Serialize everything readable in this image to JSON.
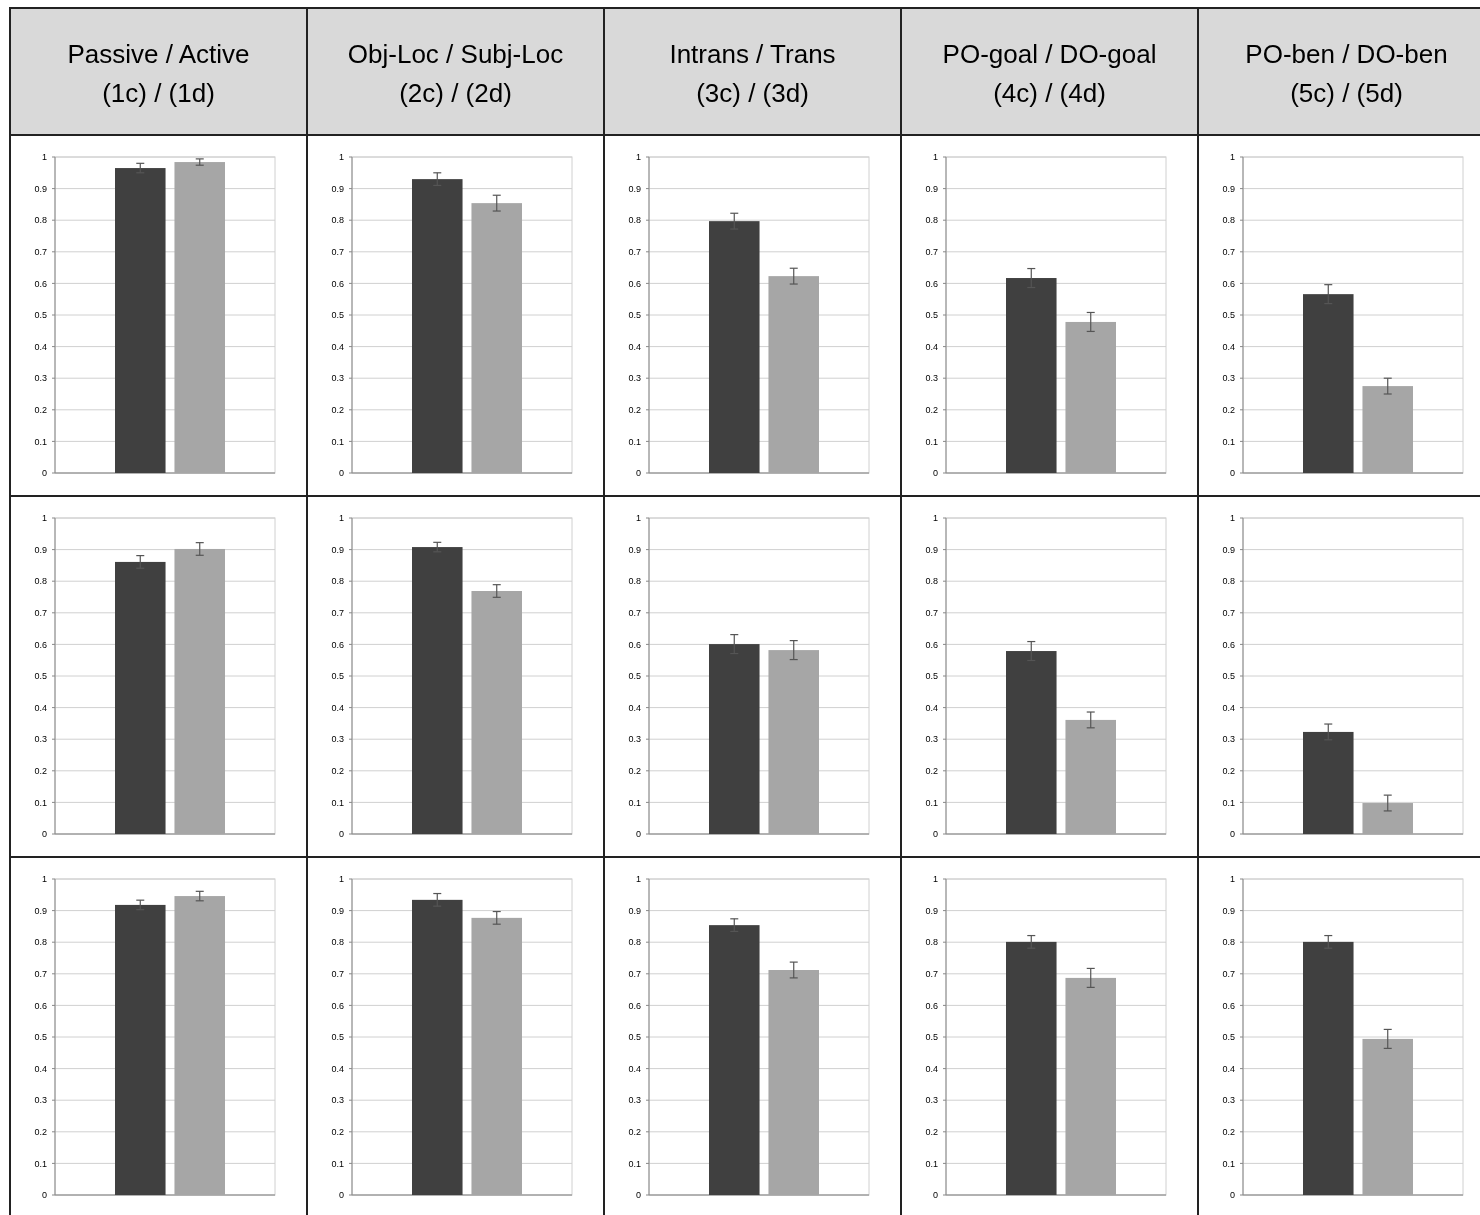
{
  "chart_data": [
    {
      "type": "bar",
      "title": "Passive / Active",
      "subtitle": "(1c) / (1d)",
      "categories": [
        null,
        null
      ],
      "values": [
        0.965,
        0.984
      ],
      "errors": [
        0.015,
        0.01
      ],
      "colors": [
        "#404040",
        "#a6a6a6"
      ],
      "ylim": [
        0,
        1
      ],
      "yticks": [
        0,
        0.1,
        0.2,
        0.3,
        0.4,
        0.5,
        0.6,
        0.7,
        0.8,
        0.9,
        1
      ],
      "grid": "y",
      "tick_labels": "y"
    },
    {
      "type": "bar",
      "title": "Obj-Loc / Subj-Loc",
      "subtitle": "(2c) / (2d)",
      "categories": [
        null,
        null
      ],
      "values": [
        0.93,
        0.854
      ],
      "errors": [
        0.02,
        0.025
      ],
      "colors": [
        "#404040",
        "#a6a6a6"
      ],
      "ylim": [
        0,
        1
      ],
      "yticks": [
        0,
        0.1,
        0.2,
        0.3,
        0.4,
        0.5,
        0.6,
        0.7,
        0.8,
        0.9,
        1
      ],
      "grid": "y",
      "tick_labels": "y"
    },
    {
      "type": "bar",
      "title": "Intrans / Trans",
      "subtitle": "(3c) / (3d)",
      "categories": [
        null,
        null
      ],
      "values": [
        0.797,
        0.623
      ],
      "errors": [
        0.025,
        0.025
      ],
      "colors": [
        "#404040",
        "#a6a6a6"
      ],
      "ylim": [
        0,
        1
      ],
      "yticks": [
        0,
        0.1,
        0.2,
        0.3,
        0.4,
        0.5,
        0.6,
        0.7,
        0.8,
        0.9,
        1
      ],
      "grid": "y",
      "tick_labels": "y"
    },
    {
      "type": "bar",
      "title": "PO-goal / DO-goal",
      "subtitle": "(4c) / (4d)",
      "categories": [
        null,
        null
      ],
      "values": [
        0.617,
        0.478
      ],
      "errors": [
        0.03,
        0.03
      ],
      "colors": [
        "#404040",
        "#a6a6a6"
      ],
      "ylim": [
        0,
        1
      ],
      "yticks": [
        0,
        0.1,
        0.2,
        0.3,
        0.4,
        0.5,
        0.6,
        0.7,
        0.8,
        0.9,
        1
      ],
      "grid": "y",
      "tick_labels": "y"
    },
    {
      "type": "bar",
      "title": "PO-ben / DO-ben",
      "subtitle": "(5c) / (5d)",
      "categories": [
        null,
        null
      ],
      "values": [
        0.566,
        0.275
      ],
      "errors": [
        0.03,
        0.025
      ],
      "colors": [
        "#404040",
        "#a6a6a6"
      ],
      "ylim": [
        0,
        1
      ],
      "yticks": [
        0,
        0.1,
        0.2,
        0.3,
        0.4,
        0.5,
        0.6,
        0.7,
        0.8,
        0.9,
        1
      ],
      "grid": "y",
      "tick_labels": "y"
    },
    {
      "type": "bar",
      "categories": [
        null,
        null
      ],
      "values": [
        0.861,
        0.902
      ],
      "errors": [
        0.02,
        0.02
      ],
      "colors": [
        "#404040",
        "#a6a6a6"
      ],
      "ylim": [
        0,
        1
      ],
      "yticks": [
        0,
        0.1,
        0.2,
        0.3,
        0.4,
        0.5,
        0.6,
        0.7,
        0.8,
        0.9,
        1
      ],
      "grid": "y",
      "tick_labels": "y"
    },
    {
      "type": "bar",
      "categories": [
        null,
        null
      ],
      "values": [
        0.908,
        0.769
      ],
      "errors": [
        0.015,
        0.02
      ],
      "colors": [
        "#404040",
        "#a6a6a6"
      ],
      "ylim": [
        0,
        1
      ],
      "yticks": [
        0,
        0.1,
        0.2,
        0.3,
        0.4,
        0.5,
        0.6,
        0.7,
        0.8,
        0.9,
        1
      ],
      "grid": "y",
      "tick_labels": "y"
    },
    {
      "type": "bar",
      "categories": [
        null,
        null
      ],
      "values": [
        0.601,
        0.582
      ],
      "errors": [
        0.03,
        0.03
      ],
      "colors": [
        "#404040",
        "#a6a6a6"
      ],
      "ylim": [
        0,
        1
      ],
      "yticks": [
        0,
        0.1,
        0.2,
        0.3,
        0.4,
        0.5,
        0.6,
        0.7,
        0.8,
        0.9,
        1
      ],
      "grid": "y",
      "tick_labels": "y"
    },
    {
      "type": "bar",
      "categories": [
        null,
        null
      ],
      "values": [
        0.579,
        0.361
      ],
      "errors": [
        0.03,
        0.025
      ],
      "colors": [
        "#404040",
        "#a6a6a6"
      ],
      "ylim": [
        0,
        1
      ],
      "yticks": [
        0,
        0.1,
        0.2,
        0.3,
        0.4,
        0.5,
        0.6,
        0.7,
        0.8,
        0.9,
        1
      ],
      "grid": "y",
      "tick_labels": "y"
    },
    {
      "type": "bar",
      "categories": [
        null,
        null
      ],
      "values": [
        0.323,
        0.098
      ],
      "errors": [
        0.025,
        0.025
      ],
      "colors": [
        "#404040",
        "#a6a6a6"
      ],
      "ylim": [
        0,
        1
      ],
      "yticks": [
        0,
        0.1,
        0.2,
        0.3,
        0.4,
        0.5,
        0.6,
        0.7,
        0.8,
        0.9,
        1
      ],
      "grid": "y",
      "tick_labels": "y"
    },
    {
      "type": "bar",
      "categories": [
        null,
        null
      ],
      "values": [
        0.918,
        0.946
      ],
      "errors": [
        0.015,
        0.015
      ],
      "colors": [
        "#404040",
        "#a6a6a6"
      ],
      "ylim": [
        0,
        1
      ],
      "yticks": [
        0,
        0.1,
        0.2,
        0.3,
        0.4,
        0.5,
        0.6,
        0.7,
        0.8,
        0.9,
        1
      ],
      "grid": "y",
      "tick_labels": "y"
    },
    {
      "type": "bar",
      "categories": [
        null,
        null
      ],
      "values": [
        0.934,
        0.877
      ],
      "errors": [
        0.02,
        0.02
      ],
      "colors": [
        "#404040",
        "#a6a6a6"
      ],
      "ylim": [
        0,
        1
      ],
      "yticks": [
        0,
        0.1,
        0.2,
        0.3,
        0.4,
        0.5,
        0.6,
        0.7,
        0.8,
        0.9,
        1
      ],
      "grid": "y",
      "tick_labels": "y"
    },
    {
      "type": "bar",
      "categories": [
        null,
        null
      ],
      "values": [
        0.854,
        0.712
      ],
      "errors": [
        0.02,
        0.025
      ],
      "colors": [
        "#404040",
        "#a6a6a6"
      ],
      "ylim": [
        0,
        1
      ],
      "yticks": [
        0,
        0.1,
        0.2,
        0.3,
        0.4,
        0.5,
        0.6,
        0.7,
        0.8,
        0.9,
        1
      ],
      "grid": "y",
      "tick_labels": "y"
    },
    {
      "type": "bar",
      "categories": [
        null,
        null
      ],
      "values": [
        0.801,
        0.687
      ],
      "errors": [
        0.02,
        0.03
      ],
      "colors": [
        "#404040",
        "#a6a6a6"
      ],
      "ylim": [
        0,
        1
      ],
      "yticks": [
        0,
        0.1,
        0.2,
        0.3,
        0.4,
        0.5,
        0.6,
        0.7,
        0.8,
        0.9,
        1
      ],
      "grid": "y",
      "tick_labels": "y"
    },
    {
      "type": "bar",
      "categories": [
        null,
        null
      ],
      "values": [
        0.801,
        0.494
      ],
      "errors": [
        0.02,
        0.03
      ],
      "colors": [
        "#404040",
        "#a6a6a6"
      ],
      "ylim": [
        0,
        1
      ],
      "yticks": [
        0,
        0.1,
        0.2,
        0.3,
        0.4,
        0.5,
        0.6,
        0.7,
        0.8,
        0.9,
        1
      ],
      "grid": "y",
      "tick_labels": "y"
    }
  ]
}
